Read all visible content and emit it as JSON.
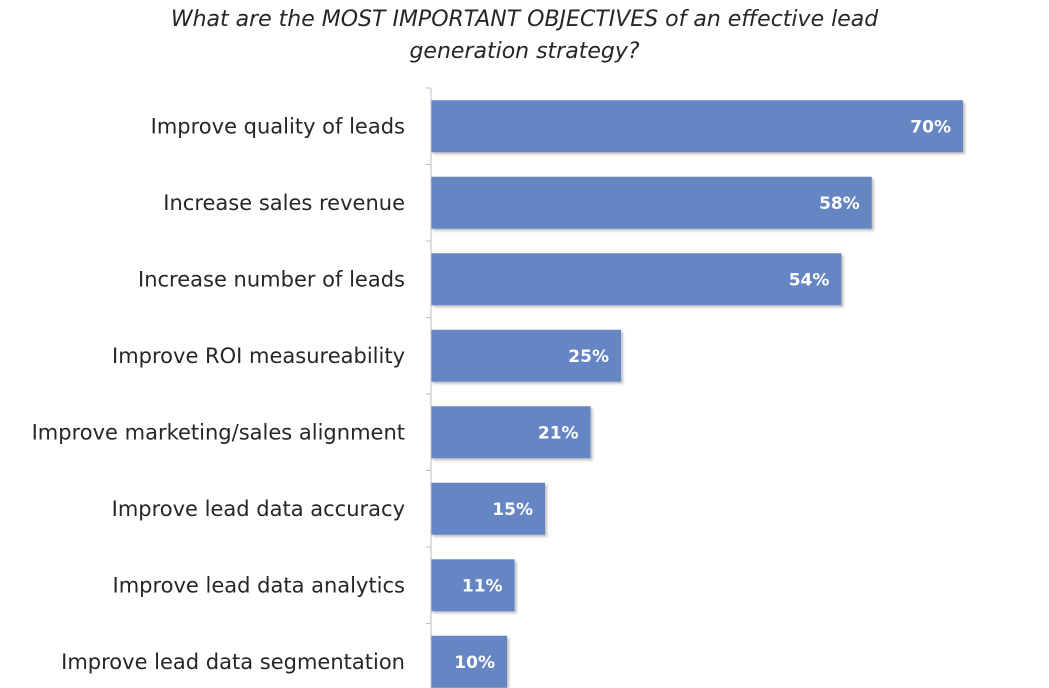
{
  "chart_data": {
    "type": "bar",
    "orientation": "horizontal",
    "title_lines": [
      "What are the MOST IMPORTANT OBJECTIVES of an effective lead",
      "generation strategy?"
    ],
    "categories": [
      "Improve quality of leads",
      "Increase sales revenue",
      "Increase number of leads",
      "Improve ROI measureability",
      "Improve marketing/sales alignment",
      "Improve lead data accuracy",
      "Improve lead data analytics",
      "Improve lead data segmentation"
    ],
    "values": [
      70,
      58,
      54,
      25,
      21,
      15,
      11,
      10
    ],
    "value_labels": [
      "70%",
      "58%",
      "54%",
      "25%",
      "21%",
      "15%",
      "11%",
      "10%"
    ],
    "unit": "%",
    "xlim": [
      0,
      80
    ],
    "grid": false,
    "bar_color": "#6586C2",
    "axis_color": "#BFBFBF"
  }
}
